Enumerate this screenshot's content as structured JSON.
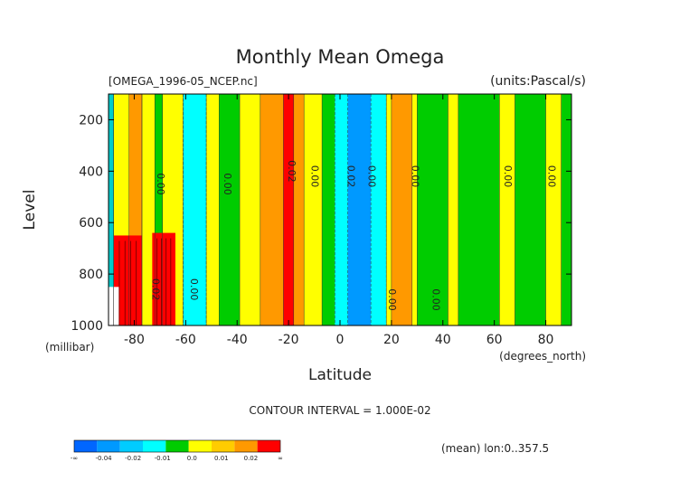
{
  "chart_data": {
    "type": "heatmap",
    "title": "Monthly Mean Omega",
    "file_label": "[OMEGA_1996-05_NCEP.nc]",
    "units_label": "(units:Pascal/s)",
    "xlabel": "Latitude",
    "x_unit": "(degrees_north)",
    "ylabel": "Level",
    "y_unit": "(millibar)",
    "contour_interval": "CONTOUR INTERVAL = 1.000E-02",
    "footer_note": "(mean) lon:0..357.5",
    "xlim": [
      -90,
      90
    ],
    "ylim": [
      1000,
      100
    ],
    "x_ticks": [
      {
        "value": -80,
        "label": "-80"
      },
      {
        "value": -60,
        "label": "-60"
      },
      {
        "value": -40,
        "label": "-40"
      },
      {
        "value": -20,
        "label": "-20"
      },
      {
        "value": 0,
        "label": "0"
      },
      {
        "value": 20,
        "label": "20"
      },
      {
        "value": 40,
        "label": "40"
      },
      {
        "value": 60,
        "label": "60"
      },
      {
        "value": 80,
        "label": "80"
      }
    ],
    "y_ticks": [
      {
        "value": 200,
        "label": "200"
      },
      {
        "value": 400,
        "label": "400"
      },
      {
        "value": 600,
        "label": "600"
      },
      {
        "value": 800,
        "label": "800"
      },
      {
        "value": 1000,
        "label": "1000"
      }
    ],
    "background_color": "#00cc00",
    "bands": [
      {
        "xmin": -90,
        "xmax": -88,
        "color": "#00cccc"
      },
      {
        "xmin": -88,
        "xmax": -82,
        "color": "#ffff00"
      },
      {
        "xmin": -82,
        "xmax": -77,
        "color": "#ff9900"
      },
      {
        "xmin": -77,
        "xmax": -72,
        "color": "#ffff00"
      },
      {
        "xmin": -69,
        "xmax": -61,
        "color": "#ffff00"
      },
      {
        "xmin": -61,
        "xmax": -52,
        "color": "#00ffff"
      },
      {
        "xmin": -52,
        "xmax": -47,
        "color": "#ffff00"
      },
      {
        "xmin": -39,
        "xmax": -7,
        "color": "#ffff00"
      },
      {
        "xmin": -31,
        "xmax": -14,
        "color": "#ff9900"
      },
      {
        "xmin": -22,
        "xmax": -18,
        "color": "#ff0000"
      },
      {
        "xmin": -2,
        "xmax": 18,
        "color": "#00ffff"
      },
      {
        "xmin": 3,
        "xmax": 12,
        "color": "#0099ff"
      },
      {
        "xmin": 18,
        "xmax": 30,
        "color": "#ffff00"
      },
      {
        "xmin": 20,
        "xmax": 28,
        "color": "#ff9900"
      },
      {
        "xmin": 42,
        "xmax": 46,
        "color": "#ffff00"
      },
      {
        "xmin": 62,
        "xmax": 68,
        "color": "#ffff00"
      },
      {
        "xmin": 80,
        "xmax": 86,
        "color": "#ffff00"
      }
    ],
    "red_cells": [
      {
        "x": [
          -88,
          -77
        ],
        "y": [
          650,
          1000
        ],
        "color": "#ff0000"
      },
      {
        "x": [
          -73,
          -64
        ],
        "y": [
          640,
          1000
        ],
        "color": "#ff0000"
      }
    ],
    "white_cell": {
      "x": [
        -90,
        -86
      ],
      "y": [
        850,
        1000
      ]
    },
    "contour_labels": [
      {
        "x": -71,
        "y": 450,
        "text": "0.00"
      },
      {
        "x": -45,
        "y": 450,
        "text": "0.00"
      },
      {
        "x": -20,
        "y": 400,
        "text": "0.02"
      },
      {
        "x": -11,
        "y": 420,
        "text": "0.00"
      },
      {
        "x": 3,
        "y": 420,
        "text": "0.02"
      },
      {
        "x": 11,
        "y": 420,
        "text": "0.00"
      },
      {
        "x": 28,
        "y": 420,
        "text": "0.00"
      },
      {
        "x": 64,
        "y": 420,
        "text": "0.00"
      },
      {
        "x": 81,
        "y": 420,
        "text": "0.00"
      },
      {
        "x": -73,
        "y": 860,
        "text": "0.02"
      },
      {
        "x": -58,
        "y": 860,
        "text": "0.00"
      },
      {
        "x": 19,
        "y": 900,
        "text": "0.00"
      },
      {
        "x": 36,
        "y": 900,
        "text": "0.00"
      }
    ],
    "colorbar": {
      "colors": [
        "#0066ff",
        "#0099ff",
        "#00ccff",
        "#00ffff",
        "#00cc00",
        "#ffff00",
        "#ffcc00",
        "#ff9900",
        "#ff0000"
      ],
      "labels": [
        "-∞",
        "-0.04",
        "-0.02",
        "-0.01",
        "0.0",
        "0.01",
        "0.02",
        "∞"
      ]
    }
  }
}
